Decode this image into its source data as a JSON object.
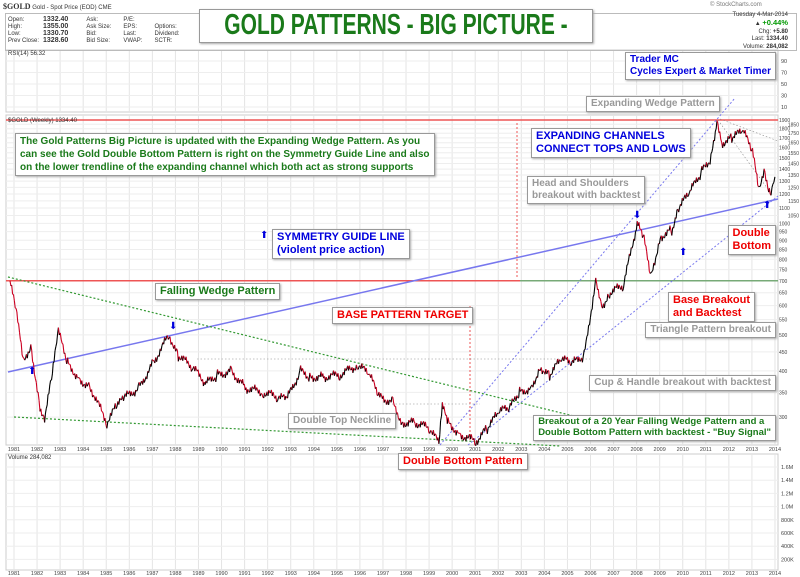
{
  "header": {
    "symbol": "$GOLD",
    "name": "Gold - Spot Price (EOD)",
    "exchange": "CME",
    "site": "© StockCharts.com",
    "fields": [
      [
        "Open:",
        "1332.40",
        "Ask:",
        "",
        "P/E:",
        "",
        ""
      ],
      [
        "High:",
        "1355.00",
        "Ask Size:",
        "",
        "EPS:",
        "",
        "Options:"
      ],
      [
        "Low:",
        "1330.70",
        "Bid:",
        "",
        "Last:",
        "",
        "Dividend:"
      ],
      [
        "Prev Close:",
        "1328.60",
        "Bid Size:",
        "",
        "VWAP:",
        "",
        "SCTR:"
      ]
    ],
    "date": "Tuesday  4-Mar-2014",
    "pct": "+0.44%",
    "chg_label": "Chg:",
    "chg": "+5.80",
    "last_label": "Last:",
    "last": "1334.40",
    "vol_label": "Volume:",
    "volume": "284,082"
  },
  "title": "GOLD PATTERNS - BIG PICTURE -",
  "author": {
    "line1": "Trader MC",
    "line2": "Cycles Expert & Market Timer"
  },
  "rsi_label": "RSI(14) 56.32",
  "price_label": "$GOLD (Weekly) 1334.40",
  "volume_label": "Volume 284,082",
  "annotations": {
    "intro": [
      "The Gold Patterns Big Picture is updated with the Expanding Wedge Pattern. As you",
      "can see the Gold Double Bottom Pattern is right on the Symmetry Guide Line and also",
      "on the lower trendline of the expanding channel which both act as strong supports"
    ],
    "expanding_wedge": "Expanding Wedge Pattern",
    "channels": [
      "EXPANDING CHANNELS",
      "CONNECT TOPS AND LOWS"
    ],
    "head_shoulders": [
      "Head and Shoulders",
      "breakout with backtest"
    ],
    "symmetry": [
      "SYMMETRY GUIDE LINE",
      "(violent price action)"
    ],
    "double_bottom": [
      "Double",
      "Bottom"
    ],
    "falling_wedge": "Falling Wedge Pattern",
    "base_target": "BASE PATTERN TARGET",
    "base_breakout": [
      "Base Breakout",
      "and Backtest"
    ],
    "triangle": "Triangle Pattern breakout",
    "cup_handle": "Cup & Handle breakout with backtest",
    "double_top": "Double Top Neckline",
    "breakout20": [
      "Breakout of a 20 Year Falling Wedge Pattern and a",
      "Double Bottom Pattern with backtest - \"Buy Signal\""
    ],
    "double_bottom_pattern": "Double Bottom Pattern"
  },
  "colors": {
    "up": "#000000",
    "down": "#cc0022",
    "symmetry": "#7777ee",
    "wedge": "#339933",
    "resist": "#ee5555"
  },
  "chart_data": {
    "type": "line",
    "title": "$GOLD (Weekly)",
    "yscale": "log",
    "ylim": [
      250,
      1900
    ],
    "y_ticks": [
      1900,
      1850,
      1800,
      1750,
      1700,
      1650,
      1600,
      1550,
      1500,
      1450,
      1400,
      1350,
      1300,
      1250,
      1200,
      1150,
      1100,
      1050,
      1000,
      950,
      900,
      850,
      800,
      750,
      700,
      650,
      600,
      550,
      500,
      450,
      400,
      350,
      300
    ],
    "x_ticks": [
      "1981",
      "1982",
      "1983",
      "1984",
      "1985",
      "1986",
      "1987",
      "1988",
      "1989",
      "1990",
      "1991",
      "1992",
      "1993",
      "1994",
      "1995",
      "1996",
      "1997",
      "1998",
      "1999",
      "2000",
      "2001",
      "2002",
      "2003",
      "2004",
      "2005",
      "2006",
      "2007",
      "2008",
      "2009",
      "2010",
      "2011",
      "2012",
      "2013",
      "2014"
    ],
    "rsi_ticks": [
      "90",
      "70",
      "50",
      "30",
      "10"
    ],
    "volume_ticks": [
      "1.6M",
      "1.4M",
      "1.2M",
      "1.0M",
      "800K",
      "600K",
      "400K",
      "200K"
    ],
    "series": [
      {
        "name": "Gold weekly close (approx.)",
        "x": [
          1981.0,
          1981.3,
          1981.6,
          1981.9,
          1982.3,
          1982.5,
          1982.8,
          1983.1,
          1983.5,
          1984.0,
          1984.5,
          1985.2,
          1985.6,
          1986.0,
          1986.6,
          1987.2,
          1987.9,
          1988.3,
          1988.9,
          1989.5,
          1990.0,
          1990.6,
          1991.2,
          1992.0,
          1992.6,
          1993.0,
          1993.6,
          1994.0,
          1994.6,
          1995.3,
          1996.1,
          1996.6,
          1997.0,
          1997.6,
          1998.0,
          1998.6,
          1999.2,
          1999.6,
          1999.75,
          2000.0,
          2000.5,
          2001.2,
          2001.7,
          2002.2,
          2002.7,
          2003.1,
          2003.6,
          2004.0,
          2004.4,
          2004.9,
          2005.4,
          2005.9,
          2006.4,
          2006.7,
          2007.0,
          2007.6,
          2008.2,
          2008.5,
          2008.8,
          2009.2,
          2009.7,
          2010.0,
          2010.5,
          2011.0,
          2011.4,
          2011.66,
          2011.9,
          2012.3,
          2012.8,
          2013.2,
          2013.5,
          2013.7,
          2013.9,
          2014.0,
          2014.17
        ],
        "values": [
          700,
          560,
          420,
          470,
          320,
          300,
          380,
          510,
          420,
          380,
          360,
          290,
          320,
          340,
          360,
          420,
          500,
          440,
          410,
          370,
          390,
          400,
          360,
          350,
          340,
          335,
          400,
          385,
          385,
          390,
          415,
          390,
          340,
          330,
          290,
          290,
          280,
          255,
          320,
          290,
          270,
          258,
          280,
          310,
          320,
          350,
          360,
          410,
          390,
          430,
          420,
          440,
          700,
          600,
          650,
          680,
          1000,
          900,
          720,
          920,
          960,
          1100,
          1220,
          1380,
          1500,
          1900,
          1650,
          1700,
          1780,
          1550,
          1220,
          1400,
          1250,
          1230,
          1334
        ]
      }
    ],
    "trendlines": [
      "Symmetry guide line",
      "Falling wedge upper",
      "Falling wedge lower",
      "Expanding channel upper",
      "Expanding channel lower",
      "Resistance 1900",
      "Resistance 700"
    ]
  }
}
